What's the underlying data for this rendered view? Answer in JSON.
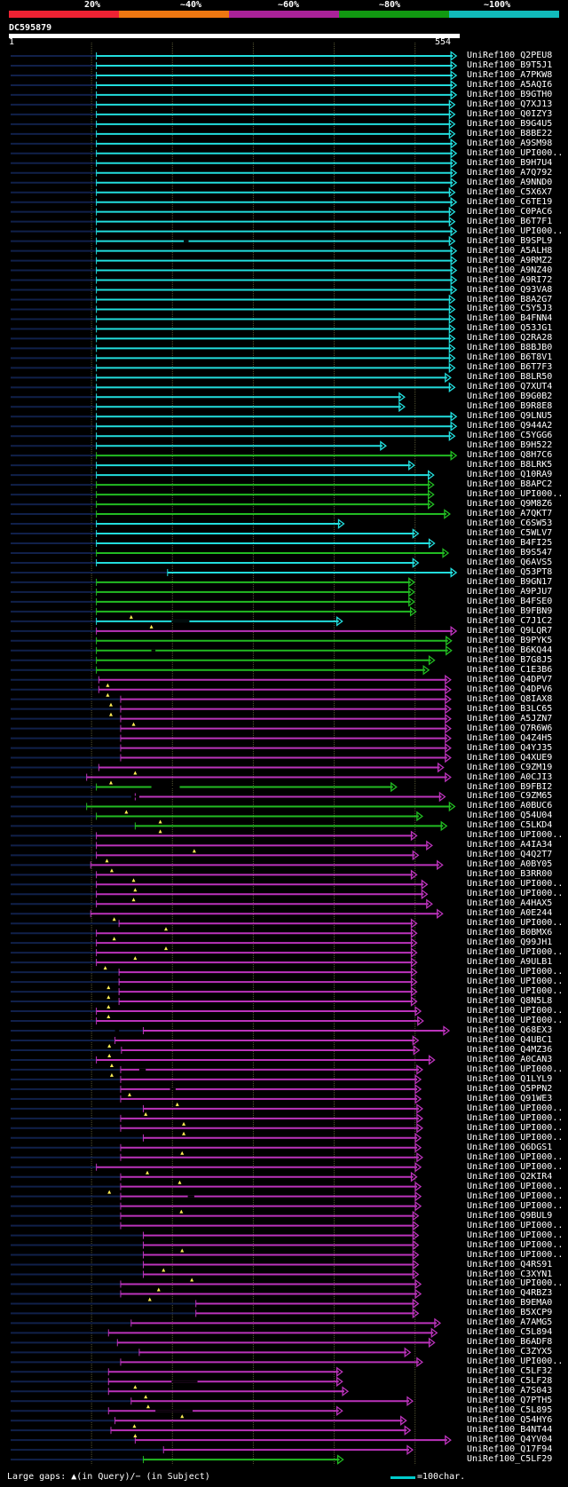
{
  "legend": {
    "segments": [
      {
        "color": "#ee2233"
      },
      {
        "color": "#ee7711"
      },
      {
        "color": "#aa2299"
      },
      {
        "color": "#119911"
      },
      {
        "color": "#11bbbb"
      }
    ],
    "labels": [
      "20%",
      "~40%",
      "~60%",
      "~80%",
      "~100%"
    ]
  },
  "header": {
    "title": "DC595879",
    "query_start": "1",
    "query_end": "554"
  },
  "footer": {
    "label": "Large gaps: ▲(in Query)/− (in Subject)",
    "key": "=100char."
  },
  "chart_data": {
    "type": "alignment",
    "query_length": 554,
    "colors": {
      "cyan": "#22dddd",
      "green": "#22bb22",
      "magenta": "#bb33bb"
    },
    "hits": [
      [
        "UniRef100_Q2PEU8",
        107,
        552,
        "cyan"
      ],
      [
        "UniRef100_B9T5J1",
        107,
        552,
        "cyan"
      ],
      [
        "UniRef100_A7PKW8",
        107,
        552,
        "cyan"
      ],
      [
        "UniRef100_A5AQI6",
        107,
        552,
        "cyan"
      ],
      [
        "UniRef100_B9GTH0",
        107,
        552,
        "cyan"
      ],
      [
        "UniRef100_Q7XJ13",
        107,
        550,
        "cyan"
      ],
      [
        "UniRef100_Q0IZY3",
        107,
        550,
        "cyan"
      ],
      [
        "UniRef100_B9G4U5",
        107,
        550,
        "cyan"
      ],
      [
        "UniRef100_B8BE22",
        107,
        550,
        "cyan"
      ],
      [
        "UniRef100_A9SM98",
        107,
        552,
        "cyan"
      ],
      [
        "UniRef100_UPI000..",
        107,
        552,
        "cyan"
      ],
      [
        "UniRef100_B9H7U4",
        107,
        552,
        "cyan"
      ],
      [
        "UniRef100_A7Q792",
        107,
        552,
        "cyan"
      ],
      [
        "UniRef100_A9NND0",
        107,
        552,
        "cyan"
      ],
      [
        "UniRef100_C5X6X7",
        107,
        550,
        "cyan"
      ],
      [
        "UniRef100_C6TE19",
        107,
        552,
        "cyan"
      ],
      [
        "UniRef100_C0PAC6",
        107,
        550,
        "cyan"
      ],
      [
        "UniRef100_B6T7F1",
        107,
        550,
        "cyan"
      ],
      [
        "UniRef100_UPI000..",
        107,
        552,
        "cyan"
      ],
      [
        "UniRef100_B9SPL9",
        107,
        550,
        "cyan"
      ],
      [
        "UniRef100_A5ALH8",
        107,
        552,
        "cyan"
      ],
      [
        "UniRef100_A9RMZ2",
        107,
        552,
        "cyan"
      ],
      [
        "UniRef100_A9NZ40",
        107,
        552,
        "cyan"
      ],
      [
        "UniRef100_A9RI72",
        107,
        552,
        "cyan"
      ],
      [
        "UniRef100_Q93VA8",
        107,
        552,
        "cyan"
      ],
      [
        "UniRef100_B8A2G7",
        107,
        550,
        "cyan"
      ],
      [
        "UniRef100_C5Y5J3",
        107,
        550,
        "cyan"
      ],
      [
        "UniRef100_B4FNN4",
        107,
        550,
        "cyan"
      ],
      [
        "UniRef100_Q53JG1",
        107,
        550,
        "cyan"
      ],
      [
        "UniRef100_Q2RA28",
        107,
        550,
        "cyan"
      ],
      [
        "UniRef100_B8BJB0",
        107,
        550,
        "cyan"
      ],
      [
        "UniRef100_B6T8V1",
        107,
        550,
        "cyan"
      ],
      [
        "UniRef100_B6T7F3",
        107,
        550,
        "cyan"
      ],
      [
        "UniRef100_B8LR50",
        107,
        545,
        "cyan"
      ],
      [
        "UniRef100_Q7XUT4",
        107,
        550,
        "cyan"
      ],
      [
        "UniRef100_B9G0B2",
        107,
        488,
        "cyan"
      ],
      [
        "UniRef100_B9R8E8",
        107,
        488,
        "cyan"
      ],
      [
        "UniRef100_Q9LNU5",
        107,
        552,
        "cyan"
      ],
      [
        "UniRef100_Q944A2",
        107,
        552,
        "cyan"
      ],
      [
        "UniRef100_C5YGG6",
        107,
        550,
        "cyan"
      ],
      [
        "UniRef100_B9H522",
        107,
        465,
        "cyan"
      ],
      [
        "UniRef100_Q8H7C6",
        107,
        552,
        "green"
      ],
      [
        "UniRef100_B8LRK5",
        107,
        500,
        "cyan"
      ],
      [
        "UniRef100_Q10RA9",
        107,
        524,
        "cyan"
      ],
      [
        "UniRef100_B8APC2",
        107,
        524,
        "green"
      ],
      [
        "UniRef100_UPI000..",
        107,
        524,
        "green"
      ],
      [
        "UniRef100_Q9M8Z6",
        107,
        524,
        "green"
      ],
      [
        "UniRef100_A7QKT7",
        107,
        544,
        "green"
      ],
      [
        "UniRef100_C6SW53",
        107,
        413,
        "cyan"
      ],
      [
        "UniRef100_C5WLV7",
        107,
        505,
        "cyan"
      ],
      [
        "UniRef100_B4FI25",
        107,
        525,
        "cyan"
      ],
      [
        "UniRef100_B9S547",
        107,
        542,
        "green"
      ],
      [
        "UniRef100_Q6AVS5",
        107,
        505,
        "cyan"
      ],
      [
        "UniRef100_Q53PT8",
        195,
        552,
        "cyan"
      ],
      [
        "UniRef100_B9GN17",
        107,
        500,
        "green"
      ],
      [
        "UniRef100_A9PJU7",
        107,
        500,
        "green"
      ],
      [
        "UniRef100_B4FSE0",
        107,
        500,
        "green"
      ],
      [
        "UniRef100_B9FBN9",
        107,
        502,
        "green"
      ],
      [
        "UniRef100_C7J1C2",
        107,
        411,
        "cyan"
      ],
      [
        "UniRef100_Q9LQR7",
        107,
        552,
        "magenta"
      ],
      [
        "UniRef100_B9PYK5",
        107,
        546,
        "green"
      ],
      [
        "UniRef100_B6KQ44",
        107,
        546,
        "green"
      ],
      [
        "UniRef100_B7G8J5",
        107,
        525,
        "green"
      ],
      [
        "UniRef100_C1E3B6",
        107,
        518,
        "green"
      ],
      [
        "UniRef100_Q4DPV7",
        110,
        545,
        "magenta"
      ],
      [
        "UniRef100_Q4DPV6",
        110,
        545,
        "magenta"
      ],
      [
        "UniRef100_Q8IAX8",
        137,
        545,
        "magenta"
      ],
      [
        "UniRef100_B3LC65",
        137,
        545,
        "magenta"
      ],
      [
        "UniRef100_A5JZN7",
        137,
        545,
        "magenta"
      ],
      [
        "UniRef100_Q7R6W6",
        137,
        545,
        "magenta"
      ],
      [
        "UniRef100_Q4Z4H5",
        137,
        545,
        "magenta"
      ],
      [
        "UniRef100_Q4YJ35",
        137,
        545,
        "magenta"
      ],
      [
        "UniRef100_Q4XUE9",
        137,
        545,
        "magenta"
      ],
      [
        "UniRef100_C9ZM19",
        110,
        536,
        "magenta"
      ],
      [
        "UniRef100_A0CJI3",
        95,
        545,
        "magenta"
      ],
      [
        "UniRef100_B9FBI2",
        107,
        478,
        "green"
      ],
      [
        "UniRef100_C9ZM65",
        155,
        538,
        "magenta"
      ],
      [
        "UniRef100_A0BUC6",
        95,
        550,
        "green"
      ],
      [
        "UniRef100_Q54U04",
        107,
        510,
        "green"
      ],
      [
        "UniRef100_C5LKD4",
        155,
        540,
        "green"
      ],
      [
        "UniRef100_UPI000..",
        107,
        503,
        "magenta"
      ],
      [
        "UniRef100_A4IA34",
        107,
        522,
        "magenta"
      ],
      [
        "UniRef100_Q4Q2T7",
        107,
        505,
        "magenta"
      ],
      [
        "UniRef100_A0BY05",
        100,
        535,
        "magenta"
      ],
      [
        "UniRef100_B3RR00",
        107,
        503,
        "magenta"
      ],
      [
        "UniRef100_UPI000..",
        107,
        516,
        "magenta"
      ],
      [
        "UniRef100_UPI000..",
        107,
        516,
        "magenta"
      ],
      [
        "UniRef100_A4HAX5",
        107,
        522,
        "magenta"
      ],
      [
        "UniRef100_A0E244",
        100,
        535,
        "magenta"
      ],
      [
        "UniRef100_UPI000..",
        135,
        503,
        "magenta"
      ],
      [
        "UniRef100_B0BMX6",
        107,
        503,
        "magenta"
      ],
      [
        "UniRef100_Q99JH1",
        107,
        503,
        "magenta"
      ],
      [
        "UniRef100_UPI000..",
        107,
        503,
        "magenta"
      ],
      [
        "UniRef100_A9ULB1",
        107,
        503,
        "magenta"
      ],
      [
        "UniRef100_UPI000..",
        135,
        503,
        "magenta"
      ],
      [
        "UniRef100_UPI000..",
        135,
        503,
        "magenta"
      ],
      [
        "UniRef100_UPI000..",
        135,
        503,
        "magenta"
      ],
      [
        "UniRef100_Q8N5L8",
        135,
        503,
        "magenta"
      ],
      [
        "UniRef100_UPI000..",
        107,
        508,
        "magenta"
      ],
      [
        "UniRef100_UPI000..",
        107,
        511,
        "magenta"
      ],
      [
        "UniRef100_Q68EX3",
        165,
        543,
        "magenta"
      ],
      [
        "UniRef100_Q4UBC1",
        130,
        505,
        "magenta"
      ],
      [
        "UniRef100_Q4MZ36",
        138,
        506,
        "magenta"
      ],
      [
        "UniRef100_A0CAN3",
        107,
        525,
        "magenta"
      ],
      [
        "UniRef100_UPI000..",
        137,
        510,
        "magenta"
      ],
      [
        "UniRef100_Q1LYL9",
        137,
        508,
        "magenta"
      ],
      [
        "UniRef100_Q5PPN2",
        137,
        508,
        "magenta"
      ],
      [
        "UniRef100_Q91WE3",
        137,
        508,
        "magenta"
      ],
      [
        "UniRef100_UPI000..",
        165,
        510,
        "magenta"
      ],
      [
        "UniRef100_UPI000..",
        137,
        510,
        "magenta"
      ],
      [
        "UniRef100_UPI000..",
        137,
        510,
        "magenta"
      ],
      [
        "UniRef100_UPI000..",
        165,
        508,
        "magenta"
      ],
      [
        "UniRef100_Q6DGS1",
        137,
        508,
        "magenta"
      ],
      [
        "UniRef100_UPI000..",
        137,
        510,
        "magenta"
      ],
      [
        "UniRef100_UPI000..",
        107,
        508,
        "magenta"
      ],
      [
        "UniRef100_Q2KIR4",
        137,
        503,
        "magenta"
      ],
      [
        "UniRef100_UPI000..",
        137,
        508,
        "magenta"
      ],
      [
        "UniRef100_UPI000..",
        137,
        508,
        "magenta"
      ],
      [
        "UniRef100_UPI000..",
        137,
        508,
        "magenta"
      ],
      [
        "UniRef100_Q9BUL9",
        137,
        505,
        "magenta"
      ],
      [
        "UniRef100_UPI000..",
        137,
        505,
        "magenta"
      ],
      [
        "UniRef100_UPI000..",
        165,
        505,
        "magenta"
      ],
      [
        "UniRef100_UPI000..",
        165,
        505,
        "magenta"
      ],
      [
        "UniRef100_UPI000..",
        165,
        505,
        "magenta"
      ],
      [
        "UniRef100_Q4RS91",
        165,
        505,
        "magenta"
      ],
      [
        "UniRef100_C3XYN1",
        165,
        505,
        "magenta"
      ],
      [
        "UniRef100_UPI000..",
        137,
        508,
        "magenta"
      ],
      [
        "UniRef100_Q4RBZ3",
        137,
        508,
        "magenta"
      ],
      [
        "UniRef100_B9EMA0",
        230,
        505,
        "magenta"
      ],
      [
        "UniRef100_B5XCP9",
        230,
        505,
        "magenta"
      ],
      [
        "UniRef100_A7AMG5",
        150,
        532,
        "magenta"
      ],
      [
        "UniRef100_C5L894",
        122,
        528,
        "magenta"
      ],
      [
        "UniRef100_B6ADF8",
        133,
        525,
        "magenta"
      ],
      [
        "UniRef100_C3ZYX5",
        160,
        495,
        "magenta"
      ],
      [
        "UniRef100_UPI000..",
        137,
        510,
        "magenta"
      ],
      [
        "UniRef100_C5LF32",
        122,
        411,
        "magenta"
      ],
      [
        "UniRef100_C5LF28",
        122,
        411,
        "magenta"
      ],
      [
        "UniRef100_A7S043",
        122,
        418,
        "magenta"
      ],
      [
        "UniRef100_Q7PTH5",
        150,
        498,
        "magenta"
      ],
      [
        "UniRef100_C5L895",
        122,
        411,
        "magenta"
      ],
      [
        "UniRef100_Q54HY6",
        130,
        490,
        "magenta"
      ],
      [
        "UniRef100_B4NT44",
        125,
        495,
        "magenta"
      ],
      [
        "UniRef100_Q4YV04",
        155,
        545,
        "magenta"
      ],
      [
        "UniRef100_Q17F94",
        190,
        498,
        "magenta"
      ],
      [
        "UniRef100_C5LF29",
        165,
        412,
        "green"
      ]
    ],
    "query_gap_markers": [
      [
        57,
        150
      ],
      [
        58,
        175
      ],
      [
        64,
        121
      ],
      [
        65,
        121
      ],
      [
        66,
        125
      ],
      [
        67,
        125
      ],
      [
        68,
        153
      ],
      [
        73,
        155
      ],
      [
        74,
        125
      ],
      [
        77,
        144
      ],
      [
        78,
        186
      ],
      [
        79,
        186
      ],
      [
        81,
        228
      ],
      [
        82,
        120
      ],
      [
        83,
        126
      ],
      [
        84,
        153
      ],
      [
        85,
        155
      ],
      [
        86,
        153
      ],
      [
        88,
        129
      ],
      [
        89,
        193
      ],
      [
        90,
        129
      ],
      [
        91,
        193
      ],
      [
        92,
        155
      ],
      [
        93,
        118
      ],
      [
        95,
        122
      ],
      [
        96,
        122
      ],
      [
        97,
        122
      ],
      [
        98,
        122
      ],
      [
        101,
        123
      ],
      [
        102,
        123
      ],
      [
        103,
        126
      ],
      [
        104,
        126
      ],
      [
        106,
        148
      ],
      [
        107,
        207
      ],
      [
        108,
        168
      ],
      [
        109,
        215
      ],
      [
        110,
        215
      ],
      [
        112,
        213
      ],
      [
        114,
        170
      ],
      [
        115,
        210
      ],
      [
        116,
        123
      ],
      [
        118,
        212
      ],
      [
        122,
        213
      ],
      [
        124,
        190
      ],
      [
        125,
        225
      ],
      [
        126,
        184
      ],
      [
        127,
        173
      ],
      [
        136,
        155
      ],
      [
        137,
        168
      ],
      [
        138,
        171
      ],
      [
        139,
        213
      ],
      [
        140,
        154
      ],
      [
        141,
        155
      ]
    ],
    "subject_gap_marks": [
      [
        19,
        215,
        221
      ],
      [
        58,
        200,
        222
      ],
      [
        61,
        175,
        180
      ],
      [
        75,
        175,
        210
      ],
      [
        76,
        150,
        160
      ],
      [
        100,
        130,
        135
      ],
      [
        104,
        160,
        168
      ],
      [
        106,
        198,
        205
      ],
      [
        117,
        220,
        228
      ],
      [
        136,
        200,
        232
      ],
      [
        139,
        180,
        226
      ]
    ]
  }
}
